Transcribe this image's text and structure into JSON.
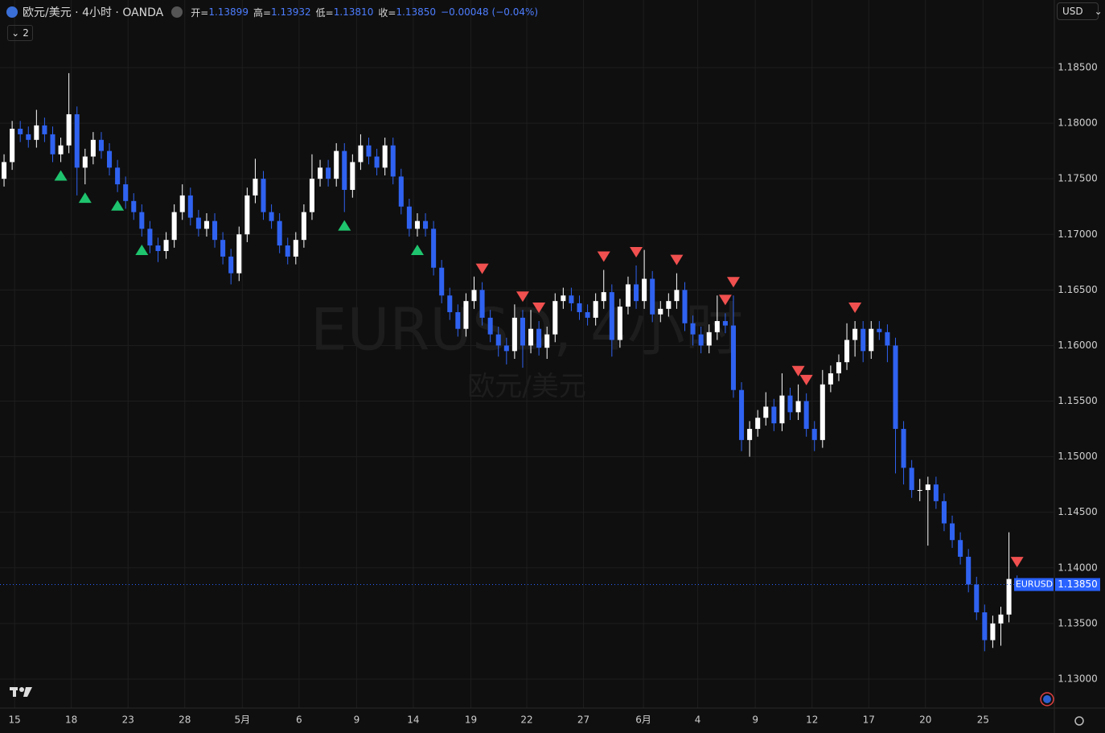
{
  "header": {
    "symbol_title": "欧元/美元 · 4小时 · OANDA",
    "open_label": "开=",
    "open": "1.13899",
    "high_label": "高=",
    "high": "1.13932",
    "low_label": "低=",
    "low": "1.13810",
    "close_label": "收=",
    "close": "1.13850",
    "change": "−0.00048 (−0.04%)",
    "indicator_count": "2",
    "currency": "USD"
  },
  "chart_data": {
    "type": "candlestick",
    "watermark": "EURUSD, 4小时",
    "watermark_sub": "欧元/美元",
    "up_color": "#ffffff",
    "down_color": "#2f62f0",
    "signal_up_color": "#1fc46e",
    "signal_down_color": "#f0504f",
    "grid": true,
    "ylim": [
      1.12739,
      1.19108
    ],
    "yticks": [
      {
        "value": 1.185,
        "label": "1.18500"
      },
      {
        "value": 1.18,
        "label": "1.18000"
      },
      {
        "value": 1.175,
        "label": "1.17500"
      },
      {
        "value": 1.17,
        "label": "1.17000"
      },
      {
        "value": 1.165,
        "label": "1.16500"
      },
      {
        "value": 1.16,
        "label": "1.16000"
      },
      {
        "value": 1.155,
        "label": "1.15500"
      },
      {
        "value": 1.15,
        "label": "1.15000"
      },
      {
        "value": 1.145,
        "label": "1.14500"
      },
      {
        "value": 1.14,
        "label": "1.14000"
      },
      {
        "value": 1.135,
        "label": "1.13500"
      },
      {
        "value": 1.13,
        "label": "1.13000"
      }
    ],
    "xlim": [
      0,
      130
    ],
    "xticks": [
      {
        "value": 1.8,
        "label": "15"
      },
      {
        "value": 8.8,
        "label": "18"
      },
      {
        "value": 15.8,
        "label": "23"
      },
      {
        "value": 22.8,
        "label": "28"
      },
      {
        "value": 29.9,
        "label": "5月"
      },
      {
        "value": 36.9,
        "label": "6"
      },
      {
        "value": 44.0,
        "label": "9"
      },
      {
        "value": 51.0,
        "label": "14"
      },
      {
        "value": 58.1,
        "label": "19"
      },
      {
        "value": 65.0,
        "label": "22"
      },
      {
        "value": 72.0,
        "label": "27"
      },
      {
        "value": 79.4,
        "label": "6月"
      },
      {
        "value": 86.1,
        "label": "4"
      },
      {
        "value": 93.2,
        "label": "9"
      },
      {
        "value": 100.2,
        "label": "12"
      },
      {
        "value": 107.2,
        "label": "17"
      },
      {
        "value": 114.2,
        "label": "20"
      },
      {
        "value": 121.3,
        "label": "25"
      }
    ],
    "last_price": {
      "value": 1.1385,
      "label": "1.13850",
      "symbol": "EURUSD"
    },
    "signals_up": [
      7,
      10,
      14,
      17,
      42,
      51
    ],
    "signals_down": [
      59,
      64,
      66,
      74,
      78,
      83,
      89,
      90,
      98,
      99,
      105,
      125
    ],
    "candles": [
      [
        1.175,
        1.1772,
        1.1743,
        1.1765
      ],
      [
        1.1765,
        1.1802,
        1.1758,
        1.1795
      ],
      [
        1.1795,
        1.1802,
        1.1783,
        1.179
      ],
      [
        1.179,
        1.1797,
        1.1778,
        1.1785
      ],
      [
        1.1785,
        1.1812,
        1.1778,
        1.1798
      ],
      [
        1.1798,
        1.1805,
        1.1783,
        1.179
      ],
      [
        1.179,
        1.1797,
        1.1765,
        1.1772
      ],
      [
        1.1772,
        1.1787,
        1.1765,
        1.178
      ],
      [
        1.178,
        1.1845,
        1.1773,
        1.1808
      ],
      [
        1.1808,
        1.1815,
        1.1735,
        1.176
      ],
      [
        1.176,
        1.1777,
        1.1745,
        1.177
      ],
      [
        1.177,
        1.1792,
        1.1763,
        1.1785
      ],
      [
        1.1785,
        1.1792,
        1.1768,
        1.1775
      ],
      [
        1.1775,
        1.1782,
        1.1753,
        1.176
      ],
      [
        1.176,
        1.1767,
        1.1738,
        1.1745
      ],
      [
        1.1745,
        1.1752,
        1.1723,
        1.173
      ],
      [
        1.173,
        1.1737,
        1.1713,
        1.172
      ],
      [
        1.172,
        1.1727,
        1.1698,
        1.1705
      ],
      [
        1.1705,
        1.1712,
        1.1683,
        1.169
      ],
      [
        1.169,
        1.1697,
        1.1675,
        1.1685
      ],
      [
        1.1685,
        1.1702,
        1.1678,
        1.1695
      ],
      [
        1.1695,
        1.1727,
        1.1688,
        1.172
      ],
      [
        1.172,
        1.1745,
        1.1713,
        1.1735
      ],
      [
        1.1735,
        1.1742,
        1.1708,
        1.1715
      ],
      [
        1.1715,
        1.1722,
        1.1698,
        1.1705
      ],
      [
        1.1705,
        1.1719,
        1.1698,
        1.1712
      ],
      [
        1.1712,
        1.1719,
        1.1688,
        1.1695
      ],
      [
        1.1695,
        1.1702,
        1.1673,
        1.168
      ],
      [
        1.168,
        1.1687,
        1.1655,
        1.1665
      ],
      [
        1.1665,
        1.1707,
        1.1658,
        1.17
      ],
      [
        1.17,
        1.1742,
        1.1693,
        1.1735
      ],
      [
        1.1735,
        1.1768,
        1.1728,
        1.175
      ],
      [
        1.175,
        1.1757,
        1.1713,
        1.172
      ],
      [
        1.172,
        1.1727,
        1.1705,
        1.1712
      ],
      [
        1.1712,
        1.1719,
        1.1683,
        1.169
      ],
      [
        1.169,
        1.1697,
        1.1673,
        1.168
      ],
      [
        1.168,
        1.1702,
        1.1673,
        1.1695
      ],
      [
        1.1695,
        1.1727,
        1.1688,
        1.172
      ],
      [
        1.172,
        1.1772,
        1.1713,
        1.175
      ],
      [
        1.175,
        1.1767,
        1.1743,
        1.176
      ],
      [
        1.176,
        1.1767,
        1.1743,
        1.175
      ],
      [
        1.175,
        1.1782,
        1.1743,
        1.1775
      ],
      [
        1.1775,
        1.1782,
        1.172,
        1.174
      ],
      [
        1.174,
        1.1772,
        1.1733,
        1.1765
      ],
      [
        1.1765,
        1.179,
        1.1758,
        1.178
      ],
      [
        1.178,
        1.1787,
        1.1763,
        1.177
      ],
      [
        1.177,
        1.1777,
        1.1753,
        1.176
      ],
      [
        1.176,
        1.1787,
        1.1753,
        1.178
      ],
      [
        1.178,
        1.1787,
        1.1745,
        1.1752
      ],
      [
        1.1752,
        1.1759,
        1.1718,
        1.1725
      ],
      [
        1.1725,
        1.1732,
        1.1698,
        1.1705
      ],
      [
        1.1705,
        1.1719,
        1.1698,
        1.1712
      ],
      [
        1.1712,
        1.1719,
        1.1698,
        1.1705
      ],
      [
        1.1705,
        1.1712,
        1.1663,
        1.167
      ],
      [
        1.167,
        1.1677,
        1.1638,
        1.1645
      ],
      [
        1.1645,
        1.1652,
        1.1623,
        1.163
      ],
      [
        1.163,
        1.1637,
        1.1608,
        1.1615
      ],
      [
        1.1615,
        1.1647,
        1.1608,
        1.164
      ],
      [
        1.164,
        1.1662,
        1.1633,
        1.165
      ],
      [
        1.165,
        1.1657,
        1.1618,
        1.1625
      ],
      [
        1.1625,
        1.1632,
        1.1603,
        1.161
      ],
      [
        1.161,
        1.1617,
        1.159,
        1.16
      ],
      [
        1.16,
        1.1607,
        1.1583,
        1.1595
      ],
      [
        1.1595,
        1.1637,
        1.1588,
        1.1625
      ],
      [
        1.1625,
        1.1632,
        1.158,
        1.16
      ],
      [
        1.16,
        1.1632,
        1.1593,
        1.1615
      ],
      [
        1.1615,
        1.1622,
        1.1591,
        1.1598
      ],
      [
        1.1598,
        1.1617,
        1.1588,
        1.161
      ],
      [
        1.161,
        1.1647,
        1.1603,
        1.164
      ],
      [
        1.164,
        1.1652,
        1.1633,
        1.1645
      ],
      [
        1.1645,
        1.1652,
        1.1631,
        1.1638
      ],
      [
        1.1638,
        1.1645,
        1.1623,
        1.163
      ],
      [
        1.163,
        1.1637,
        1.1618,
        1.1625
      ],
      [
        1.1625,
        1.1647,
        1.1618,
        1.164
      ],
      [
        1.164,
        1.1668,
        1.1633,
        1.1648
      ],
      [
        1.1648,
        1.1655,
        1.159,
        1.1605
      ],
      [
        1.1605,
        1.1642,
        1.1598,
        1.1635
      ],
      [
        1.1635,
        1.1662,
        1.1628,
        1.1655
      ],
      [
        1.1655,
        1.1672,
        1.1633,
        1.164
      ],
      [
        1.164,
        1.1686,
        1.1633,
        1.166
      ],
      [
        1.166,
        1.1667,
        1.1621,
        1.1628
      ],
      [
        1.1628,
        1.164,
        1.1621,
        1.1633
      ],
      [
        1.1633,
        1.1647,
        1.1626,
        1.164
      ],
      [
        1.164,
        1.1665,
        1.1633,
        1.165
      ],
      [
        1.165,
        1.1657,
        1.1613,
        1.162
      ],
      [
        1.162,
        1.1627,
        1.16,
        1.161
      ],
      [
        1.161,
        1.1617,
        1.1593,
        1.16
      ],
      [
        1.16,
        1.1619,
        1.1593,
        1.1612
      ],
      [
        1.1612,
        1.1645,
        1.1605,
        1.1622
      ],
      [
        1.1622,
        1.1629,
        1.1611,
        1.1618
      ],
      [
        1.1618,
        1.1645,
        1.1553,
        1.156
      ],
      [
        1.156,
        1.1567,
        1.1505,
        1.1515
      ],
      [
        1.1515,
        1.1532,
        1.15,
        1.1525
      ],
      [
        1.1525,
        1.1542,
        1.1518,
        1.1535
      ],
      [
        1.1535,
        1.1558,
        1.1528,
        1.1545
      ],
      [
        1.1545,
        1.1552,
        1.1523,
        1.153
      ],
      [
        1.153,
        1.1575,
        1.1523,
        1.1555
      ],
      [
        1.1555,
        1.1562,
        1.1533,
        1.154
      ],
      [
        1.154,
        1.1565,
        1.1533,
        1.155
      ],
      [
        1.155,
        1.1557,
        1.1518,
        1.1525
      ],
      [
        1.1525,
        1.1532,
        1.1505,
        1.1515
      ],
      [
        1.1515,
        1.1578,
        1.1508,
        1.1565
      ],
      [
        1.1565,
        1.1582,
        1.1558,
        1.1575
      ],
      [
        1.1575,
        1.1592,
        1.1568,
        1.1585
      ],
      [
        1.1585,
        1.162,
        1.1578,
        1.1605
      ],
      [
        1.1605,
        1.1622,
        1.159,
        1.1615
      ],
      [
        1.1615,
        1.1622,
        1.1585,
        1.1595
      ],
      [
        1.1595,
        1.1622,
        1.1588,
        1.1615
      ],
      [
        1.1615,
        1.1622,
        1.1605,
        1.1612
      ],
      [
        1.1612,
        1.1619,
        1.1585,
        1.16
      ],
      [
        1.16,
        1.1607,
        1.1485,
        1.1525
      ],
      [
        1.1525,
        1.1532,
        1.1475,
        1.149
      ],
      [
        1.149,
        1.1497,
        1.1463,
        1.147
      ],
      [
        1.147,
        1.148,
        1.146,
        1.147
      ],
      [
        1.147,
        1.1482,
        1.142,
        1.1475
      ],
      [
        1.1475,
        1.1482,
        1.1453,
        1.146
      ],
      [
        1.146,
        1.1467,
        1.1433,
        1.144
      ],
      [
        1.144,
        1.1447,
        1.1418,
        1.1425
      ],
      [
        1.1425,
        1.1432,
        1.1403,
        1.141
      ],
      [
        1.141,
        1.1417,
        1.1378,
        1.1385
      ],
      [
        1.1385,
        1.1392,
        1.1353,
        1.136
      ],
      [
        1.136,
        1.1367,
        1.1325,
        1.1335
      ],
      [
        1.1335,
        1.1357,
        1.1328,
        1.135
      ],
      [
        1.135,
        1.1365,
        1.133,
        1.1358
      ],
      [
        1.1358,
        1.1432,
        1.1351,
        1.139
      ],
      [
        1.13899,
        1.13932,
        1.1381,
        1.1385
      ]
    ]
  }
}
